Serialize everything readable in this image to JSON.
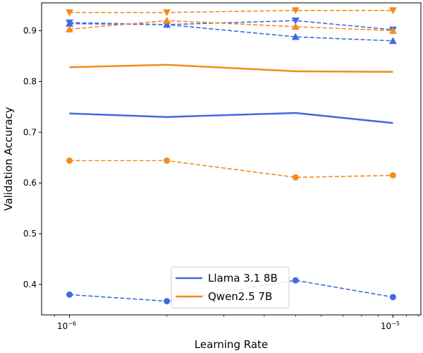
{
  "chart_data": {
    "type": "line",
    "xlabel": "Learning Rate",
    "ylabel": "Validation Accuracy",
    "xscale": "log",
    "xlim": [
      8.2e-07,
      1.22e-05
    ],
    "ylim": [
      0.34,
      0.955
    ],
    "xticks": [
      {
        "value": 1e-06,
        "base": "10",
        "exp": "−6"
      },
      {
        "value": 1e-05,
        "base": "10",
        "exp": "−5"
      }
    ],
    "yticks": [
      0.4,
      0.5,
      0.6,
      0.7,
      0.8,
      0.9
    ],
    "ytick_labels": [
      "0.4",
      "0.5",
      "0.6",
      "0.7",
      "0.8",
      "0.9"
    ],
    "x": [
      1e-06,
      2e-06,
      5e-06,
      1e-05
    ],
    "colors": {
      "llama": "#4169e1",
      "qwen": "#f28c1a"
    },
    "legend": {
      "position": "lower-center",
      "entries": [
        "Llama 3.1 8B",
        "Qwen2.5 7B"
      ]
    },
    "grid": false,
    "series": [
      {
        "model": "Llama 3.1 8B",
        "style": "solid",
        "marker": "none",
        "values": [
          0.737,
          0.73,
          0.738,
          0.718
        ]
      },
      {
        "model": "Llama 3.1 8B",
        "style": "dashed",
        "marker": "circle",
        "values": [
          0.38,
          0.367,
          0.408,
          0.375
        ]
      },
      {
        "model": "Llama 3.1 8B",
        "style": "dashed",
        "marker": "triangle-up",
        "values": [
          0.914,
          0.912,
          0.888,
          0.88
        ]
      },
      {
        "model": "Llama 3.1 8B",
        "style": "dashed",
        "marker": "triangle-down",
        "values": [
          0.916,
          0.912,
          0.92,
          0.902
        ]
      },
      {
        "model": "Qwen2.5 7B",
        "style": "solid",
        "marker": "none",
        "values": [
          0.828,
          0.833,
          0.82,
          0.819
        ]
      },
      {
        "model": "Qwen2.5 7B",
        "style": "dashed",
        "marker": "circle",
        "values": [
          0.644,
          0.644,
          0.611,
          0.615
        ]
      },
      {
        "model": "Qwen2.5 7B",
        "style": "dashed",
        "marker": "triangle-up",
        "values": [
          0.903,
          0.92,
          0.908,
          0.9
        ]
      },
      {
        "model": "Qwen2.5 7B",
        "style": "dashed",
        "marker": "triangle-down",
        "values": [
          0.936,
          0.936,
          0.94,
          0.94
        ]
      }
    ]
  }
}
